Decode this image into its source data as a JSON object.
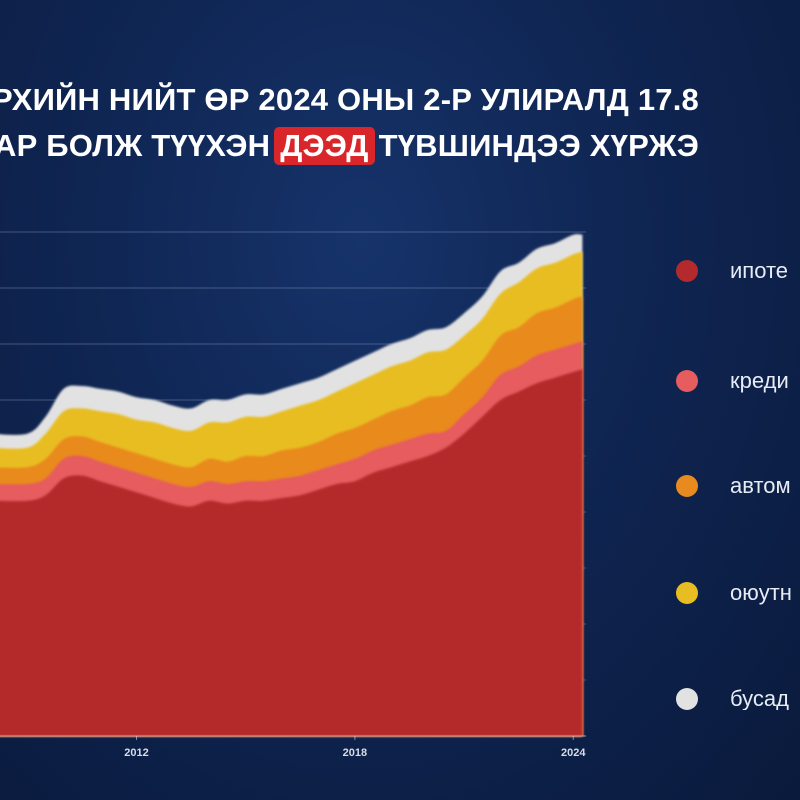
{
  "title": {
    "line1": "РХИЙН НИЙТ ӨР 2024 ОНЫ 2-Р УЛИРАЛД 17.8",
    "line2_before": "АР БОЛЖ ТҮҮХЭН",
    "line2_highlight": "ДЭЭД",
    "line2_after": "ТҮВШИНДЭЭ ХҮРЖЭ"
  },
  "colors": {
    "background": "#0f2552",
    "highlight": "#d8262a"
  },
  "legend": {
    "items": [
      {
        "label": "ипоте",
        "color": "#b42a2c"
      },
      {
        "label": "креди",
        "color": "#e65c5f"
      },
      {
        "label": "автом",
        "color": "#e98a1e"
      },
      {
        "label": "оюутн",
        "color": "#e8bd22"
      },
      {
        "label": "бусад",
        "color": "#e2e2e2"
      }
    ]
  },
  "chart_data": {
    "type": "area",
    "stacked": true,
    "grid": "horizontal",
    "x": [
      2009,
      2009.5,
      2010,
      2010.5,
      2011,
      2011.5,
      2012,
      2012.5,
      2013,
      2013.5,
      2014,
      2014.5,
      2015,
      2015.5,
      2016,
      2016.5,
      2017,
      2017.5,
      2018,
      2018.5,
      2019,
      2019.5,
      2020,
      2020.5,
      2021,
      2021.5,
      2022,
      2022.5,
      2023,
      2023.5,
      2024,
      2024.25
    ],
    "xlim": [
      2008.25,
      2024.35
    ],
    "ylim": [
      0,
      18
    ],
    "y_ticks": [
      0,
      2,
      4,
      6,
      8,
      10,
      12,
      14,
      16,
      18
    ],
    "x_ticks": [
      2012,
      2018,
      2024
    ],
    "x_tick_labels": [
      "2012",
      "2018",
      "2024"
    ],
    "series": [
      {
        "color": "#b42a2c",
        "values": [
          8.4,
          8.6,
          9.2,
          9.3,
          9.1,
          8.9,
          8.7,
          8.5,
          8.3,
          8.2,
          8.4,
          8.3,
          8.4,
          8.4,
          8.5,
          8.6,
          8.8,
          9.0,
          9.1,
          9.4,
          9.6,
          9.8,
          10.0,
          10.3,
          10.8,
          11.4,
          12.0,
          12.3,
          12.6,
          12.8,
          13.0,
          13.1
        ]
      },
      {
        "color": "#e65c5f",
        "values": [
          0.6,
          0.6,
          0.7,
          0.7,
          0.7,
          0.7,
          0.7,
          0.7,
          0.7,
          0.7,
          0.7,
          0.7,
          0.7,
          0.7,
          0.7,
          0.7,
          0.7,
          0.7,
          0.8,
          0.8,
          0.8,
          0.8,
          0.8,
          0.6,
          0.7,
          0.7,
          0.9,
          0.9,
          1.0,
          1.0,
          1.0,
          1.0
        ]
      },
      {
        "color": "#e98a1e",
        "values": [
          0.6,
          0.7,
          0.7,
          0.7,
          0.7,
          0.7,
          0.7,
          0.7,
          0.7,
          0.7,
          0.8,
          0.8,
          0.9,
          0.9,
          1.0,
          1.0,
          1.0,
          1.1,
          1.1,
          1.1,
          1.2,
          1.2,
          1.3,
          1.3,
          1.3,
          1.3,
          1.4,
          1.4,
          1.5,
          1.5,
          1.6,
          1.6
        ]
      },
      {
        "color": "#e8bd22",
        "values": [
          0.7,
          0.9,
          1.0,
          1.0,
          1.1,
          1.2,
          1.2,
          1.3,
          1.3,
          1.3,
          1.3,
          1.4,
          1.4,
          1.4,
          1.4,
          1.5,
          1.5,
          1.5,
          1.6,
          1.6,
          1.6,
          1.6,
          1.6,
          1.6,
          1.5,
          1.5,
          1.5,
          1.6,
          1.6,
          1.6,
          1.6,
          1.6
        ]
      },
      {
        "color": "#e2e2e2",
        "values": [
          0.5,
          0.6,
          0.8,
          0.8,
          0.8,
          0.8,
          0.8,
          0.8,
          0.8,
          0.8,
          0.8,
          0.8,
          0.8,
          0.8,
          0.8,
          0.8,
          0.8,
          0.8,
          0.8,
          0.8,
          0.8,
          0.8,
          0.8,
          0.8,
          0.8,
          0.8,
          0.8,
          0.7,
          0.7,
          0.7,
          0.7,
          0.6
        ]
      }
    ]
  }
}
